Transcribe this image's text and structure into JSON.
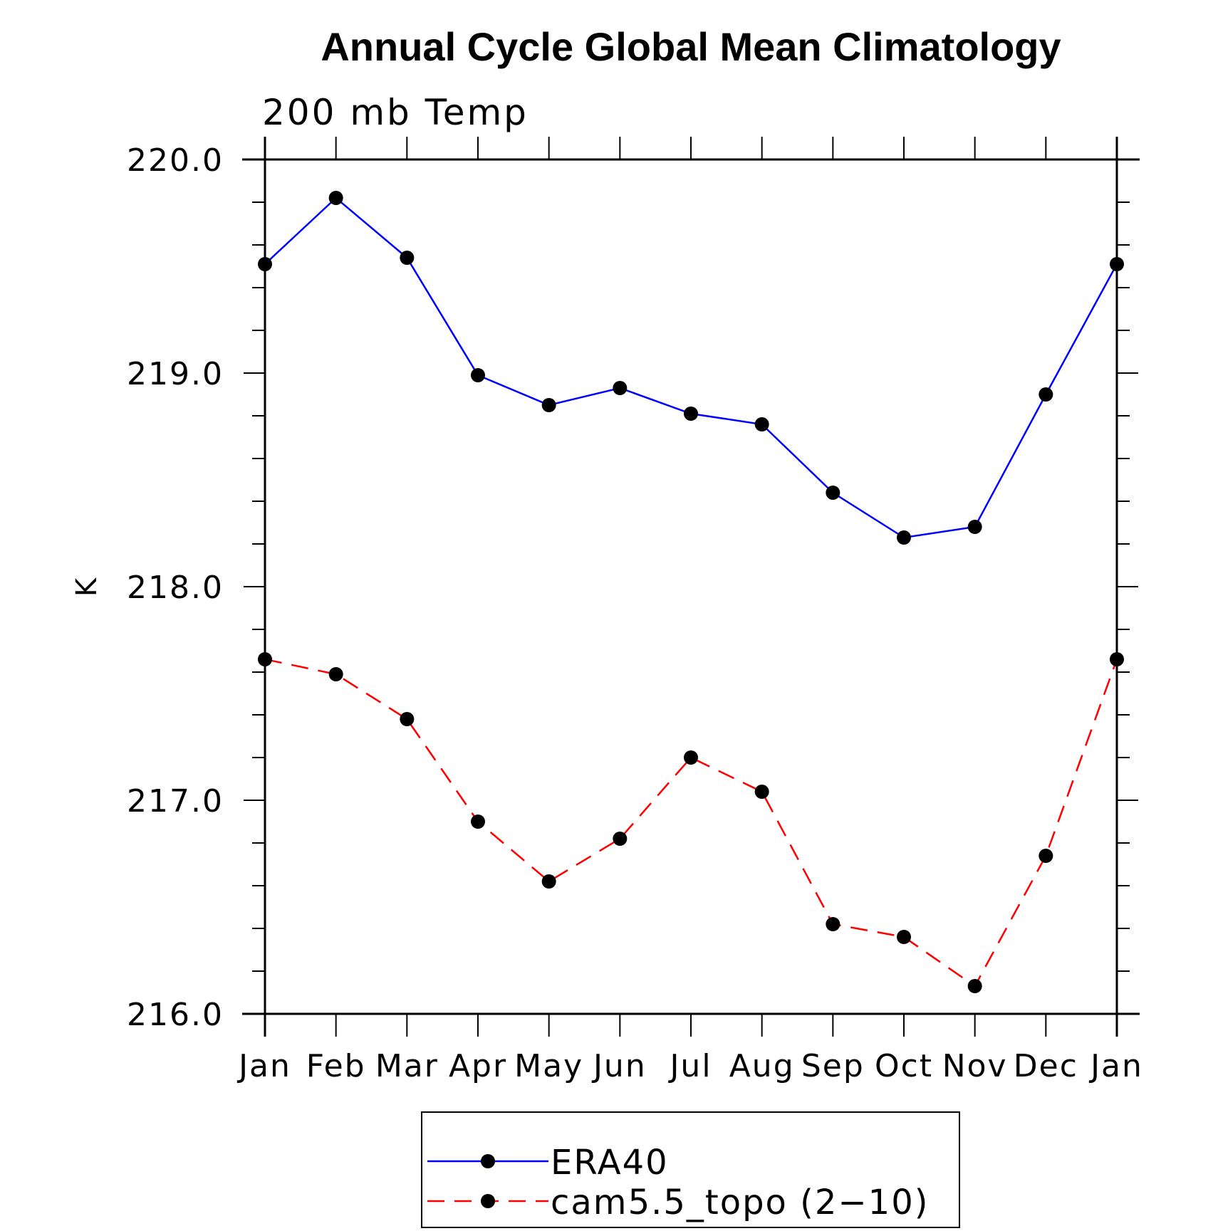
{
  "chart_data": {
    "type": "line",
    "title": "Annual Cycle Global Mean Climatology",
    "subtitle": "200 mb Temp",
    "xlabel": "",
    "ylabel": "K",
    "categories": [
      "Jan",
      "Feb",
      "Mar",
      "Apr",
      "May",
      "Jun",
      "Jul",
      "Aug",
      "Sep",
      "Oct",
      "Nov",
      "Dec",
      "Jan"
    ],
    "ylim": [
      216.0,
      220.0
    ],
    "yticks": [
      "216.0",
      "217.0",
      "218.0",
      "219.0",
      "220.0"
    ],
    "grid": false,
    "legend_position": "bottom",
    "series": [
      {
        "name": "ERA40",
        "color": "#0000ff",
        "dash": "solid",
        "values": [
          219.51,
          219.82,
          219.54,
          218.99,
          218.85,
          218.93,
          218.81,
          218.76,
          218.44,
          218.23,
          218.28,
          218.9,
          219.51
        ]
      },
      {
        "name": "cam5.5_topo (2−10)",
        "color": "#ff0000",
        "dash": "dashed",
        "values": [
          217.66,
          217.59,
          217.38,
          216.9,
          216.62,
          216.82,
          217.2,
          217.04,
          216.42,
          216.36,
          216.13,
          216.74,
          217.66
        ]
      }
    ]
  }
}
